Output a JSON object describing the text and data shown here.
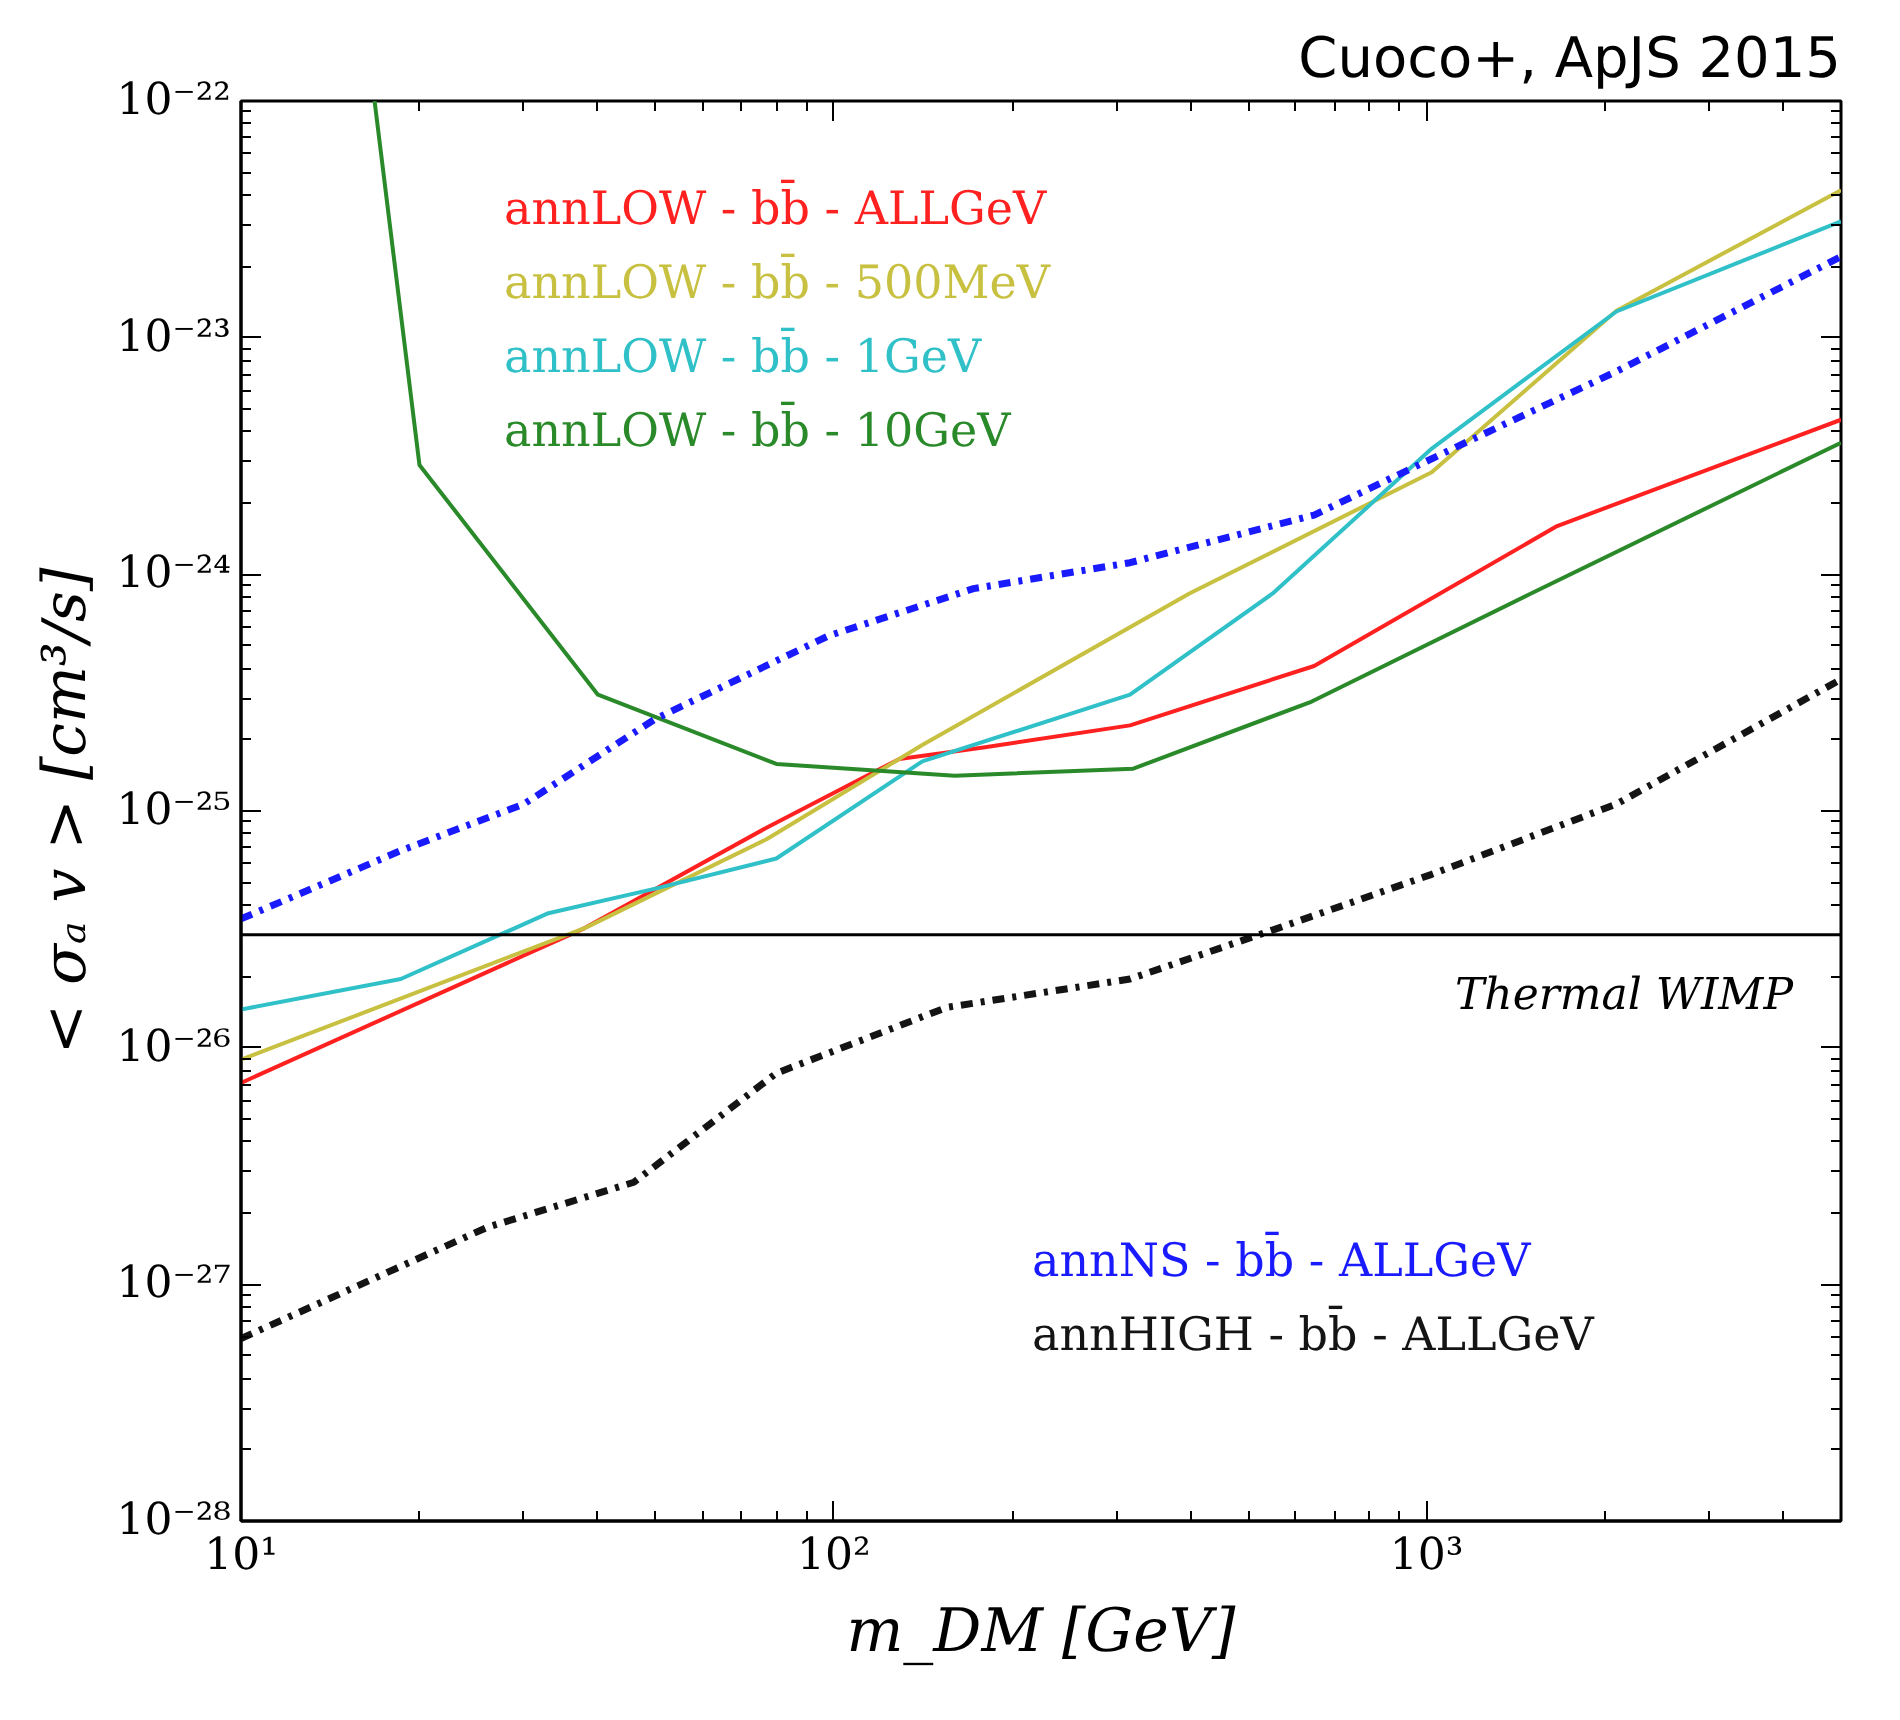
{
  "chart_data": {
    "type": "line",
    "xlabel": "m_DM [GeV]",
    "ylabel": "< σₐ v > [cm³/s]",
    "annotations": [
      "Cuoco+, ApJS 2015"
    ],
    "log": "xy",
    "grid": false,
    "legend": "bottom right",
    "xlim": [
      10,
      5000
    ],
    "ylim": [
      1e-28,
      1e-22
    ],
    "xticks": [
      {
        "value": 10,
        "label": "10¹"
      },
      {
        "value": 100,
        "label": "10²"
      },
      {
        "value": 1000,
        "label": "10³"
      }
    ],
    "yticks": [
      {
        "value": 1e-28,
        "label": "10⁻²⁸"
      },
      {
        "value": 1e-27,
        "label": "10⁻²⁷"
      },
      {
        "value": 1e-26,
        "label": "10⁻²⁶"
      },
      {
        "value": 1e-25,
        "label": "10⁻²⁵"
      },
      {
        "value": 1e-24,
        "label": "10⁻²⁴"
      },
      {
        "value": 1e-23,
        "label": "10⁻²³"
      },
      {
        "value": 1e-22,
        "label": "10⁻²²"
      }
    ],
    "ref_lines": [
      {
        "axis": "y",
        "value": 3e-26,
        "label": "Thermal WIMP",
        "color": "#000000"
      }
    ],
    "series": [
      {
        "name": "annLOW - bb̄ - ALLGeV",
        "color": "#ff2020",
        "line_style": "solid",
        "x": [
          10,
          38,
          77,
          129,
          180,
          316,
          646,
          1660,
          5000
        ],
        "values": [
          7.1e-27,
          3.2e-26,
          8.5e-26,
          1.66e-25,
          1.86e-25,
          2.3e-25,
          4.1e-25,
          1.6e-24,
          4.5e-24
        ]
      },
      {
        "name": "annLOW - bb̄ - 500MeV",
        "color": "#c8c040",
        "line_style": "solid",
        "x": [
          10,
          38,
          77,
          141,
          398,
          1020,
          2090,
          5000
        ],
        "values": [
          8.9e-27,
          3.2e-26,
          7.6e-26,
          1.9e-25,
          8.3e-25,
          2.7e-24,
          1.3e-23,
          4.2e-23
        ]
      },
      {
        "name": "annLOW - bb̄ - 1GeV",
        "color": "#30c0c8",
        "line_style": "solid",
        "x": [
          10,
          18.6,
          33,
          50,
          80,
          141,
          316,
          550,
          1020,
          2090,
          5000
        ],
        "values": [
          1.45e-26,
          1.95e-26,
          3.7e-26,
          4.7e-26,
          6.3e-26,
          1.62e-25,
          3.1e-25,
          8.3e-25,
          3.4e-24,
          1.29e-23,
          3.1e-23
        ]
      },
      {
        "name": "annLOW - bb̄ - 10GeV",
        "color": "#2a8a2a",
        "line_style": "solid",
        "x": [
          16.8,
          20,
          40,
          80,
          160,
          320,
          640,
          1500,
          5000
        ],
        "values": [
          1e-22,
          2.9e-24,
          3.1e-25,
          1.58e-25,
          1.41e-25,
          1.51e-25,
          2.9e-25,
          8.3e-25,
          3.6e-24
        ]
      },
      {
        "name": "annNS - bb̄ - ALLGeV",
        "color": "#1a1aff",
        "line_style": "dashdot",
        "x": [
          10,
          18.6,
          30,
          50,
          98,
          172,
          316,
          646,
          1135,
          2090,
          5000
        ],
        "values": [
          3.5e-26,
          6.8e-26,
          1.07e-25,
          2.45e-25,
          5.5e-25,
          8.7e-25,
          1.12e-24,
          1.78e-24,
          3.5e-24,
          7.2e-24,
          2.2e-23
        ]
      },
      {
        "name": "annHIGH - bb̄ - ALLGeV",
        "color": "#141414",
        "line_style": "dashdot",
        "x": [
          10,
          26,
          46,
          80,
          155,
          316,
          562,
          1020,
          2090,
          5000
        ],
        "values": [
          5.9e-28,
          1.74e-27,
          2.7e-27,
          7.8e-27,
          1.48e-26,
          1.95e-26,
          3.2e-26,
          5.4e-26,
          1.07e-25,
          3.6e-25
        ]
      }
    ]
  }
}
